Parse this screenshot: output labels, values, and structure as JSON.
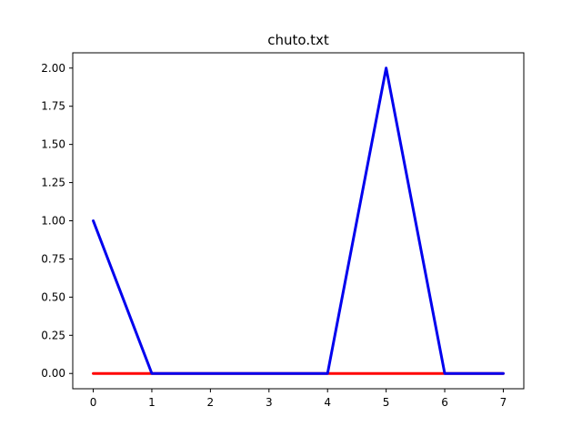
{
  "chart_data": {
    "type": "line",
    "title": "chuto.txt",
    "xlabel": "",
    "ylabel": "",
    "xlim": [
      -0.35,
      7.35
    ],
    "ylim": [
      -0.1,
      2.1
    ],
    "x_ticks": [
      0,
      1,
      2,
      3,
      4,
      5,
      6,
      7
    ],
    "x_tick_labels": [
      "0",
      "1",
      "2",
      "3",
      "4",
      "5",
      "6",
      "7"
    ],
    "y_ticks": [
      0,
      0.25,
      0.5,
      0.75,
      1.0,
      1.25,
      1.5,
      1.75,
      2.0
    ],
    "y_tick_labels": [
      "0.00",
      "0.25",
      "0.50",
      "0.75",
      "1.00",
      "1.25",
      "1.50",
      "1.75",
      "2.00"
    ],
    "grid": false,
    "series": [
      {
        "color": "#ff0000",
        "x": [
          0,
          1,
          2,
          3,
          4,
          5,
          6,
          7
        ],
        "values": [
          0,
          0,
          0,
          0,
          0,
          0,
          0,
          0
        ]
      },
      {
        "color": "#0000ee",
        "x": [
          0,
          1,
          2,
          3,
          4,
          5,
          6,
          7
        ],
        "values": [
          1,
          0,
          0,
          0,
          0,
          2,
          0,
          0
        ]
      }
    ]
  }
}
